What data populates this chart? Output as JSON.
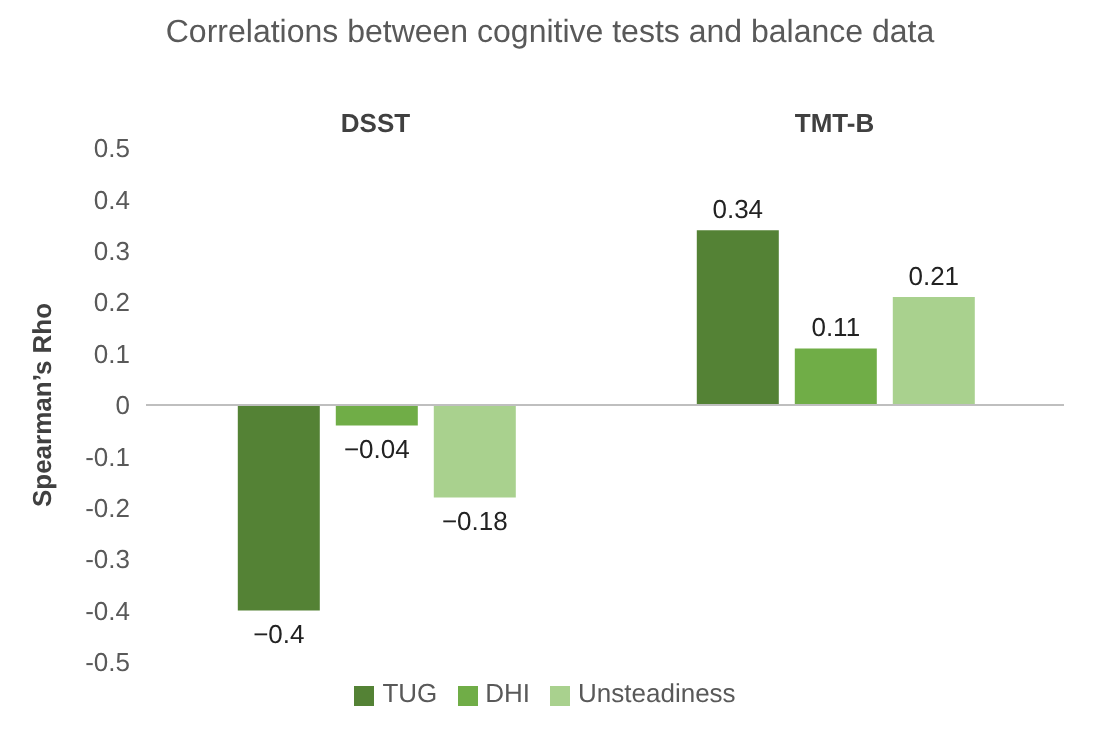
{
  "chart_data": {
    "type": "bar",
    "title": "Correlations between cognitive tests and balance data",
    "ylabel": "Spearman’s Rho",
    "categories": [
      "DSST",
      "TMT-B"
    ],
    "series": [
      {
        "name": "TUG",
        "color": "#548235",
        "values": [
          -0.4,
          0.34
        ],
        "value_labels": [
          "−0.4",
          "0.34"
        ]
      },
      {
        "name": "DHI",
        "color": "#70ad47",
        "values": [
          -0.04,
          0.11
        ],
        "value_labels": [
          "−0.04",
          "0.11"
        ]
      },
      {
        "name": "Unsteadiness",
        "color": "#a9d18e",
        "values": [
          -0.18,
          0.21
        ],
        "value_labels": [
          "−0.18",
          "0.21"
        ]
      }
    ],
    "ylim": [
      -0.5,
      0.5
    ],
    "yticks": [
      -0.5,
      -0.4,
      -0.3,
      -0.2,
      -0.1,
      0,
      0.1,
      0.2,
      0.3,
      0.4,
      0.5
    ],
    "legend": "bottom"
  }
}
